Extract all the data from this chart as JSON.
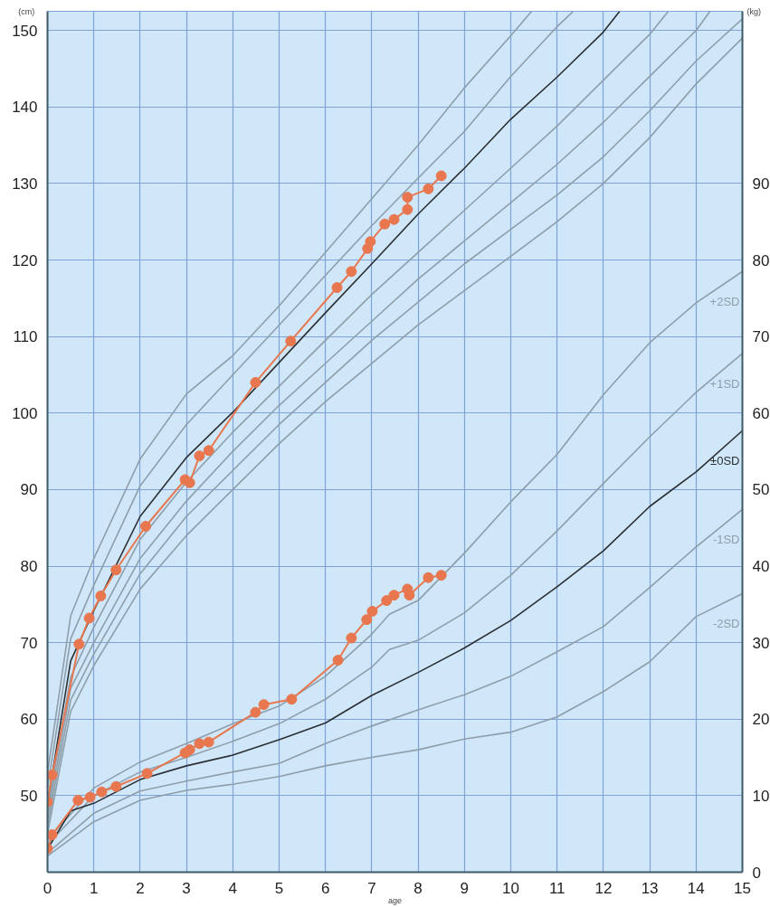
{
  "chart_data": {
    "type": "line",
    "xlabel": "age",
    "ylabel": "(cm)",
    "y2label": "(kg)",
    "xlim": [
      0,
      15
    ],
    "xticks": [
      0,
      1,
      2,
      3,
      4,
      5,
      6,
      7,
      8,
      9,
      10,
      11,
      12,
      13,
      14,
      15
    ],
    "ylim": [
      40,
      152.5
    ],
    "yticks": [
      50,
      60,
      70,
      80,
      90,
      100,
      110,
      120,
      130,
      140,
      150
    ],
    "y2lim": [
      0,
      112.5
    ],
    "y2ticks": [
      0,
      10,
      20,
      30,
      40,
      50,
      60,
      70,
      80,
      90
    ],
    "grid": true,
    "series": [
      {
        "color": "#8e9eaa",
        "x": [
          0,
          0.5,
          1,
          2,
          3,
          4,
          5,
          6,
          7,
          8,
          9,
          10,
          10.45
        ],
        "values": [
          53,
          73.5,
          81,
          94,
          102.5,
          107.5,
          114,
          121,
          128,
          135,
          142.5,
          149.3,
          152.5
        ]
      },
      {
        "color": "#8e9eaa",
        "x": [
          0,
          0.5,
          1,
          2,
          3,
          4,
          5,
          6,
          7,
          8,
          9,
          10,
          11,
          11.35
        ],
        "values": [
          51,
          70.5,
          77.5,
          90.5,
          98.5,
          105,
          111.5,
          118,
          124.5,
          130.7,
          136.8,
          144,
          150.5,
          152.5
        ]
      },
      {
        "color": "#2b2f33",
        "x": [
          0,
          0.5,
          1,
          2,
          3,
          4,
          5,
          6,
          7,
          8,
          9,
          10,
          11,
          12,
          12.35
        ],
        "values": [
          49,
          67.6,
          74.2,
          86.5,
          94.2,
          100.1,
          106.6,
          113.1,
          119.5,
          126,
          132,
          138.4,
          143.9,
          149.8,
          152.5
        ]
      },
      {
        "color": "#8e9eaa",
        "x": [
          0,
          0.5,
          1,
          2,
          3,
          4,
          5,
          6,
          7,
          8,
          9,
          10,
          11,
          12,
          13,
          13.4
        ],
        "values": [
          48,
          65.5,
          72,
          83.5,
          91,
          97.5,
          103.5,
          109.5,
          115.5,
          121,
          126.5,
          132,
          137.5,
          143.5,
          149.5,
          152.5
        ]
      },
      {
        "color": "#8e9eaa",
        "x": [
          0,
          0.5,
          1,
          2,
          3,
          4,
          5,
          6,
          7,
          8,
          9,
          10,
          11,
          12,
          13,
          14,
          14.3
        ],
        "values": [
          47,
          64,
          70,
          81,
          88.5,
          95,
          101,
          106.5,
          112,
          117.5,
          122.5,
          127.5,
          132.5,
          138,
          144,
          150,
          152.5
        ]
      },
      {
        "color": "#8e9eaa",
        "x": [
          0,
          0.5,
          1,
          2,
          3,
          4,
          5,
          6,
          7,
          8,
          9,
          10,
          11,
          12,
          13,
          14,
          15
        ],
        "values": [
          46,
          62.5,
          68.5,
          79,
          86.5,
          92.5,
          98.5,
          104,
          109.5,
          114.5,
          119.5,
          124,
          128.5,
          133.5,
          139.5,
          146,
          151.5
        ]
      },
      {
        "color": "#8e9eaa",
        "x": [
          0,
          0.5,
          1,
          2,
          3,
          4,
          5,
          6,
          7,
          8,
          9,
          10,
          11,
          12,
          13,
          14,
          15
        ],
        "values": [
          45,
          61,
          67,
          77,
          84,
          90,
          96,
          101.5,
          106.5,
          111.5,
          116,
          120.5,
          125,
          130,
          136,
          143,
          149
        ]
      },
      {
        "axis": "y2",
        "name": "+2SD",
        "color": "#8e9eaa",
        "x": [
          0,
          1,
          2,
          3,
          4,
          5,
          6,
          7,
          7.38,
          8,
          9,
          10,
          11,
          12,
          13,
          14,
          15
        ],
        "values": [
          4.2,
          11,
          14.4,
          16.8,
          19.4,
          21.7,
          25.6,
          31.1,
          33.7,
          35.5,
          41.7,
          48.4,
          54.6,
          62.4,
          69.2,
          74.4,
          78.5
        ]
      },
      {
        "axis": "y2",
        "name": "+1SD",
        "color": "#8e9eaa",
        "x": [
          0,
          1,
          2,
          3,
          4,
          5,
          6,
          7,
          7.38,
          8,
          9,
          10,
          11,
          12,
          13,
          14,
          15
        ],
        "values": [
          3.6,
          10,
          13.1,
          15,
          17.1,
          19.4,
          22.6,
          26.8,
          29.1,
          30.3,
          33.9,
          38.8,
          44.6,
          50.8,
          56.9,
          62.7,
          67.8
        ]
      },
      {
        "axis": "y2",
        "name": "±0SD",
        "color": "#2b2f33",
        "x": [
          0,
          0.5,
          1,
          2,
          3,
          4,
          5,
          6,
          7,
          8,
          9,
          10,
          11,
          12,
          13,
          14,
          15
        ],
        "values": [
          3,
          8,
          9,
          12.1,
          13.9,
          15.3,
          17.3,
          19.5,
          23.1,
          26.1,
          29.3,
          32.9,
          37.3,
          42,
          47.8,
          52.3,
          57.7
        ]
      },
      {
        "axis": "y2",
        "name": "-1SD",
        "color": "#8e9eaa",
        "x": [
          0,
          1,
          2,
          3,
          4,
          5,
          6,
          7,
          8,
          9,
          10,
          11,
          12,
          13,
          14,
          15
        ],
        "values": [
          2.5,
          7.7,
          10.6,
          11.9,
          13.1,
          14.2,
          16.8,
          19.1,
          21.2,
          23.2,
          25.6,
          28.8,
          32.1,
          37.2,
          42.5,
          47.4
        ]
      },
      {
        "axis": "y2",
        "name": "-2SD",
        "color": "#8e9eaa",
        "x": [
          0,
          1,
          2,
          3,
          4,
          5,
          6,
          7,
          8,
          9,
          10,
          11,
          12,
          13,
          14,
          15
        ],
        "values": [
          2.1,
          6.6,
          9.4,
          10.7,
          11.5,
          12.5,
          13.9,
          15,
          16,
          17.4,
          18.3,
          20.3,
          23.6,
          27.5,
          33.4,
          36.4
        ]
      },
      {
        "marker": "circle",
        "color": "#e8774f",
        "x": [
          0,
          0.1,
          0.68,
          0.9,
          1.15,
          1.48,
          2.12,
          2.97,
          3.07,
          3.28,
          3.48,
          4.49,
          5.25,
          6.25,
          6.56,
          6.91,
          6.97,
          7.28,
          7.48,
          7.77,
          7.77,
          8.22,
          8.5
        ],
        "values": [
          49.2,
          52.7,
          69.8,
          73.2,
          76.1,
          79.5,
          85.2,
          91.3,
          90.9,
          94.4,
          95.1,
          104,
          109.4,
          116.4,
          118.5,
          121.5,
          122.4,
          124.7,
          125.3,
          126.6,
          128.2,
          129.3,
          131
        ]
      },
      {
        "marker": "circle",
        "axis": "y2",
        "color": "#e8774f",
        "x": [
          0,
          0.1,
          0.66,
          0.92,
          1.17,
          1.48,
          2.15,
          2.97,
          3.07,
          3.28,
          3.48,
          4.49,
          4.67,
          5.27,
          6.27,
          6.56,
          6.89,
          7.01,
          7.32,
          7.48,
          7.77,
          7.81,
          8.22,
          8.5
        ],
        "values": [
          3.1,
          4.9,
          9.4,
          9.8,
          10.5,
          11.2,
          12.9,
          15.6,
          16,
          16.8,
          17,
          20.9,
          21.9,
          22.6,
          27.7,
          30.6,
          33,
          34.1,
          35.5,
          36.2,
          37,
          36.2,
          38.5,
          38.8
        ]
      }
    ]
  }
}
